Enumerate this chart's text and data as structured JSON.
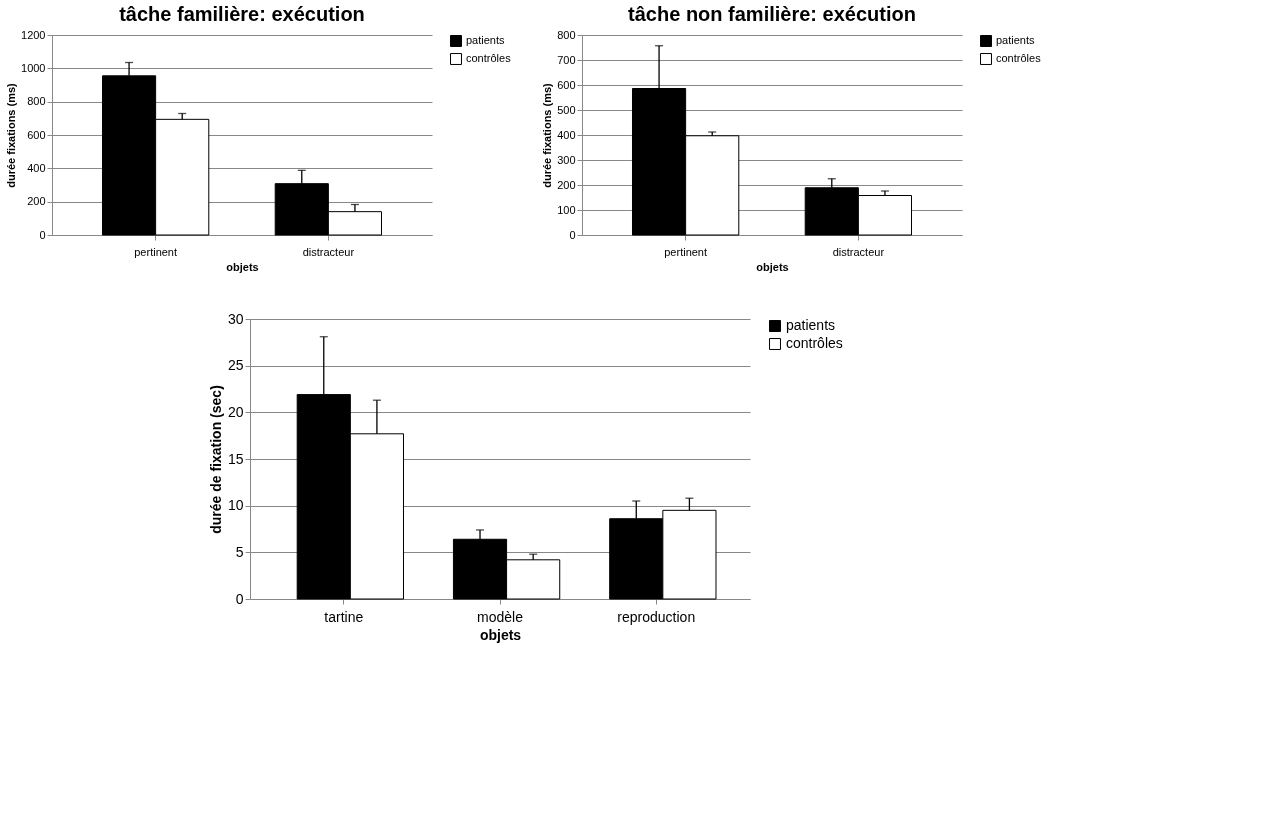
{
  "chart_data": [
    {
      "type": "bar",
      "title": "tâche  familière: exécution",
      "xlabel": "objets",
      "ylabel": "durée fixations (ms)",
      "categories": [
        "pertinent",
        "distracteur"
      ],
      "ylim": [
        0,
        1200
      ],
      "yticks": [
        0,
        200,
        400,
        600,
        800,
        1000,
        1200
      ],
      "grid": "y",
      "legend": "top right",
      "series": [
        {
          "name": "patients",
          "color": "#000000",
          "values": [
            955,
            308
          ],
          "errors": [
            [
              955,
              1035
            ],
            [
              308,
              388
            ]
          ]
        },
        {
          "name": "contrôles",
          "color": "#ffffff",
          "values": [
            694,
            140
          ],
          "errors": [
            [
              694,
              729
            ],
            [
              140,
              183
            ]
          ]
        }
      ]
    },
    {
      "type": "bar",
      "title": "tâche  non familière: exécution",
      "xlabel": "objets",
      "ylabel": "durée fixations (ms)",
      "categories": [
        "pertinent",
        "distracteur"
      ],
      "ylim": [
        0,
        800
      ],
      "yticks": [
        0,
        100,
        200,
        300,
        400,
        500,
        600,
        700,
        800
      ],
      "grid": "y",
      "legend": "top right",
      "series": [
        {
          "name": "patients",
          "color": "#000000",
          "values": [
            586,
            189
          ],
          "errors": [
            [
              586,
              757
            ],
            [
              189,
              225
            ]
          ]
        },
        {
          "name": "contrôles",
          "color": "#ffffff",
          "values": [
            397,
            158
          ],
          "errors": [
            [
              397,
              412
            ],
            [
              158,
              176
            ]
          ]
        }
      ]
    },
    {
      "type": "bar",
      "xlabel": "objets",
      "ylabel": "durée de fixation  (sec)",
      "categories": [
        "tartine",
        "modèle",
        "reproduction"
      ],
      "ylim": [
        0,
        30
      ],
      "yticks": [
        0,
        5,
        10,
        15,
        20,
        25,
        30
      ],
      "grid": "y",
      "legend": "top right",
      "series": [
        {
          "name": "patients",
          "color": "#000000",
          "values": [
            21.9,
            6.4,
            8.6
          ],
          "errors": [
            [
              21.9,
              28.1
            ],
            [
              6.4,
              7.4
            ],
            [
              8.6,
              10.5
            ]
          ]
        },
        {
          "name": "contrôles",
          "color": "#ffffff",
          "values": [
            17.7,
            4.2,
            9.5
          ],
          "errors": [
            [
              17.7,
              21.3
            ],
            [
              4.2,
              4.8
            ],
            [
              9.5,
              10.8
            ]
          ]
        }
      ]
    }
  ]
}
